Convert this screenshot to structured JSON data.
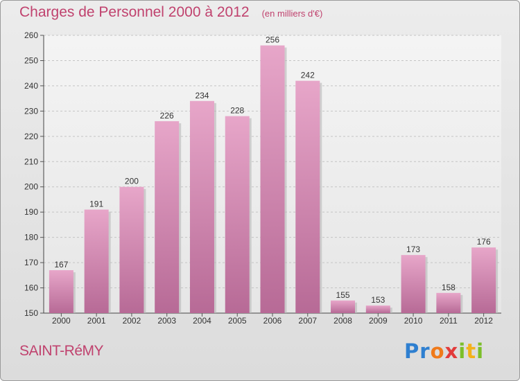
{
  "header": {
    "title": "Charges de Personnel 2000 à 2012",
    "subtitle": "(en milliers d'€)"
  },
  "footer": {
    "city": "SAINT-RéMY",
    "logo": [
      "P",
      "r",
      "o",
      "x",
      "i",
      "t",
      "i"
    ]
  },
  "colors": {
    "accent": "#c0426e",
    "bar_top": "#e7a6c9",
    "bar_bottom": "#b76a96"
  },
  "chart_data": {
    "type": "bar",
    "title": "Charges de Personnel 2000 à 2012",
    "subtitle": "(en milliers d'€)",
    "categories": [
      "2000",
      "2001",
      "2002",
      "2003",
      "2004",
      "2005",
      "2006",
      "2007",
      "2008",
      "2009",
      "2010",
      "2011",
      "2012"
    ],
    "values": [
      167,
      191,
      200,
      226,
      234,
      228,
      256,
      242,
      155,
      153,
      173,
      158,
      176
    ],
    "ylim": [
      150,
      260
    ],
    "yticks": [
      150,
      160,
      170,
      180,
      190,
      200,
      210,
      220,
      230,
      240,
      250,
      260
    ],
    "grid": true,
    "data_labels": true
  }
}
